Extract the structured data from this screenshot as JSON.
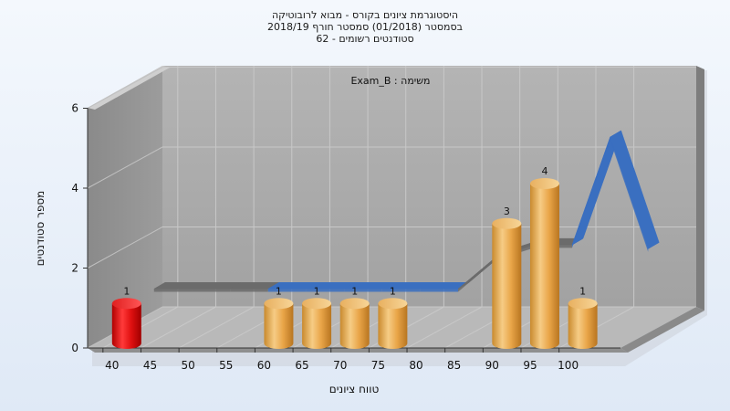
{
  "header": {
    "title_line1": "היסטוגרמת ציונים בקורס - מבוא לרובוטיקה",
    "title_line2": "בסמסטר  (01/2018)  סמסטר חורף  2018/19",
    "title_line3": "סטודנטים רשומים - 62"
  },
  "chart_data": {
    "type": "bar",
    "title": "היסטוגרמת ציונים בקורס - מבוא לרובוטיקה",
    "inner_label": "משימה : Exam_B",
    "xlabel": "טווח ציונים",
    "ylabel": "מספר סטודנטים",
    "ylim": [
      0,
      6
    ],
    "yticks": [
      0,
      2,
      4,
      6
    ],
    "xticks": [
      "40",
      "45",
      "50",
      "55",
      "60",
      "65",
      "70",
      "75",
      "80",
      "85",
      "90",
      "95",
      "100"
    ],
    "grid": true,
    "bars": [
      {
        "bin": 40,
        "value": 1,
        "color": "red"
      },
      {
        "bin": 60,
        "value": 1,
        "color": "orange"
      },
      {
        "bin": 65,
        "value": 1,
        "color": "orange"
      },
      {
        "bin": 70,
        "value": 1,
        "color": "orange"
      },
      {
        "bin": 75,
        "value": 1,
        "color": "orange"
      },
      {
        "bin": 90,
        "value": 3,
        "color": "orange"
      },
      {
        "bin": 95,
        "value": 4,
        "color": "orange"
      },
      {
        "bin": 100,
        "value": 1,
        "color": "orange"
      }
    ],
    "trend_line": {
      "x": [
        40,
        45,
        50,
        55,
        60,
        65,
        70,
        75,
        80,
        85,
        90,
        95,
        100,
        105
      ],
      "y": [
        1,
        1,
        1,
        1,
        1,
        1,
        1,
        1,
        1,
        1.8,
        2.1,
        2.1,
        4.8,
        2.0
      ]
    },
    "colors": {
      "red_bar": "#dd1111",
      "orange_bar": "#e8a84a",
      "trend_front": "#3a6fc0",
      "trend_back": "#6b6b6b",
      "wall": "#a6a6a6",
      "floor": "#b8b8b8"
    }
  }
}
